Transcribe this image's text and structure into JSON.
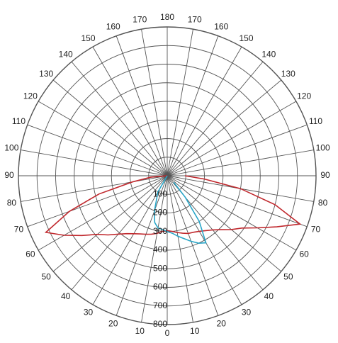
{
  "chart_data": {
    "type": "polar",
    "rlim": [
      0,
      800
    ],
    "rticks": [
      100,
      200,
      300,
      400,
      500,
      600,
      700,
      800
    ],
    "angle_ticks": [
      0,
      10,
      20,
      30,
      40,
      50,
      60,
      70,
      80,
      90,
      100,
      110,
      120,
      130,
      140,
      150,
      160,
      170,
      180
    ],
    "grid_color": "#555555",
    "series": [
      {
        "color": "#c0282d",
        "x": [
          -90,
          -85,
          -80,
          -75,
          -70,
          -65,
          -60,
          -55,
          -50,
          -45,
          -40,
          -35,
          -30,
          -25,
          -20,
          -15,
          -10,
          -5,
          0,
          5,
          10,
          15,
          20,
          25,
          30,
          35,
          40,
          45,
          50,
          55,
          60,
          65,
          70,
          75,
          80,
          85,
          90
        ],
        "values": [
          0,
          90,
          190,
          380,
          560,
          720,
          640,
          560,
          490,
          450,
          410,
          380,
          360,
          345,
          335,
          325,
          315,
          300,
          295,
          300,
          310,
          320,
          330,
          335,
          345,
          360,
          380,
          410,
          450,
          490,
          560,
          650,
          760,
          600,
          400,
          200,
          95
        ]
      },
      {
        "color": "#2aa6c8",
        "x": [
          -40,
          -30,
          -20,
          -15,
          -10,
          -5,
          0,
          5,
          10,
          15,
          20,
          25,
          30,
          35,
          40,
          45
        ],
        "values": [
          0,
          100,
          200,
          260,
          285,
          290,
          300,
          310,
          330,
          350,
          375,
          400,
          416,
          300,
          150,
          50
        ]
      }
    ]
  }
}
